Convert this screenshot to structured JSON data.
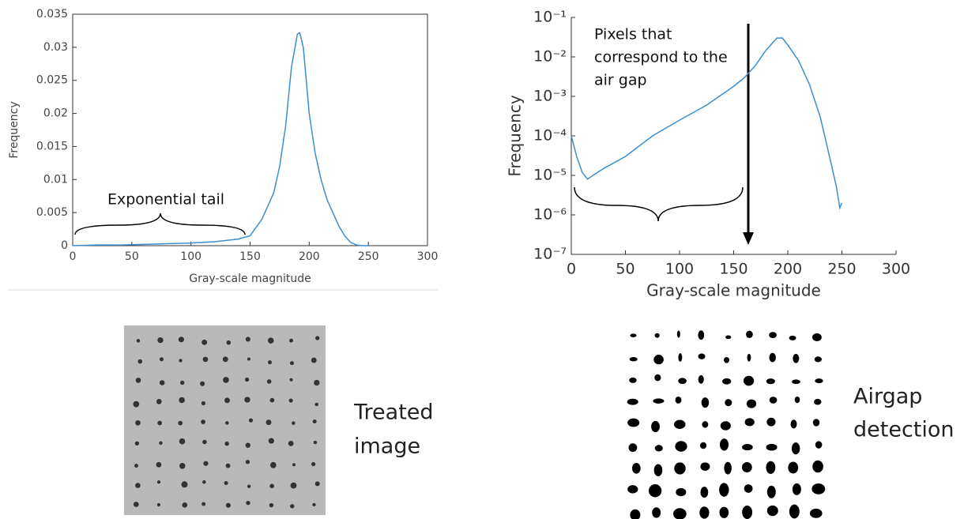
{
  "chart_data": [
    {
      "type": "line",
      "x_label": "Gray-scale magnitude",
      "y_label": "Frequency",
      "annotation": "Exponential tail",
      "x": [
        0,
        20,
        40,
        60,
        80,
        100,
        120,
        140,
        150,
        160,
        170,
        175,
        180,
        185,
        190,
        192,
        195,
        200,
        205,
        210,
        215,
        220,
        225,
        230,
        235,
        240,
        245,
        250
      ],
      "series": [
        {
          "color": "#3b8fd0",
          "values": [
            0,
            0.0001,
            0.0001,
            0.0002,
            0.0003,
            0.0004,
            0.0006,
            0.001,
            0.0015,
            0.004,
            0.008,
            0.012,
            0.018,
            0.027,
            0.032,
            0.0322,
            0.03,
            0.02,
            0.014,
            0.01,
            0.007,
            0.005,
            0.003,
            0.0015,
            0.0005,
            0.0001,
            0,
            0
          ]
        }
      ],
      "xlim": [
        0,
        300
      ],
      "xticks": [
        0,
        50,
        100,
        150,
        200,
        250,
        300
      ],
      "ylim": [
        0,
        0.035
      ],
      "yticks": [
        0,
        0.005,
        0.01,
        0.015,
        0.02,
        0.025,
        0.03,
        0.035
      ],
      "log_scale": false,
      "box": true
    },
    {
      "type": "line",
      "x_label": "Gray-scale magnitude",
      "y_label": "Frequency",
      "annotation_lines": [
        "Pixels that",
        "correspond to the",
        "air gap"
      ],
      "x": [
        0,
        5,
        10,
        15,
        20,
        30,
        50,
        75,
        100,
        125,
        150,
        160,
        170,
        180,
        190,
        195,
        200,
        210,
        220,
        230,
        240,
        245,
        248,
        250
      ],
      "series": [
        {
          "color": "#3b8fd0",
          "values": [
            0.0001,
            3e-05,
            1.2e-05,
            8e-06,
            1e-05,
            1.5e-05,
            3e-05,
            0.0001,
            0.00025,
            0.0006,
            0.0018,
            0.003,
            0.006,
            0.015,
            0.03,
            0.03,
            0.02,
            0.008,
            0.002,
            0.0003,
            2e-05,
            5e-06,
            1.5e-06,
            2e-06
          ]
        }
      ],
      "xlim": [
        0,
        300
      ],
      "xticks": [
        0,
        50,
        100,
        150,
        200,
        250,
        300
      ],
      "ylim": [
        1e-07,
        0.1
      ],
      "yticks": [
        {
          "value": 1e-07,
          "label": "10⁻⁷"
        },
        {
          "value": 1e-06,
          "label": "10⁻⁶"
        },
        {
          "value": 1e-05,
          "label": "10⁻⁵"
        },
        {
          "value": 0.0001,
          "label": "10⁻⁴"
        },
        {
          "value": 0.001,
          "label": "10⁻³"
        },
        {
          "value": 0.01,
          "label": "10⁻²"
        },
        {
          "value": 0.1,
          "label": "10⁻¹"
        }
      ],
      "log_scale": true,
      "box": false
    }
  ],
  "images": [
    {
      "caption_lines": [
        "Treated",
        "image"
      ]
    },
    {
      "caption_lines": [
        "Airgap",
        "detection"
      ]
    }
  ]
}
